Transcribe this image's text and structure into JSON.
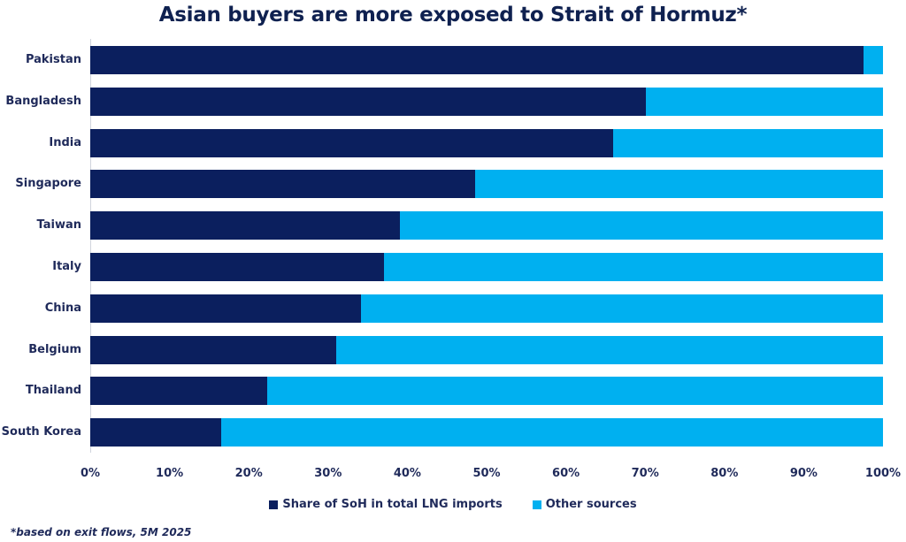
{
  "chart_data": {
    "type": "bar",
    "orientation": "horizontal",
    "stacked": true,
    "title": "Asian buyers are more exposed to Strait of Hormuz*",
    "xlabel": "",
    "ylabel": "",
    "xlim": [
      0,
      100
    ],
    "x_ticks": [
      "0%",
      "10%",
      "20%",
      "30%",
      "40%",
      "50%",
      "60%",
      "70%",
      "80%",
      "90%",
      "100%"
    ],
    "categories": [
      "Pakistan",
      "Bangladesh",
      "India",
      "Singapore",
      "Taiwan",
      "Italy",
      "China",
      "Belgium",
      "Thailand",
      "South Korea"
    ],
    "series": [
      {
        "name": "Share of SoH in total LNG imports",
        "color": "#0b1f5e",
        "values": [
          97.5,
          70.1,
          66.0,
          48.5,
          39.1,
          37.1,
          34.1,
          31.0,
          22.3,
          16.5
        ]
      },
      {
        "name": "Other sources",
        "color": "#00b0f0",
        "values": [
          2.5,
          29.9,
          34.0,
          51.5,
          60.9,
          62.9,
          65.9,
          69.0,
          77.7,
          83.5
        ]
      }
    ],
    "grid": false,
    "legend_position": "bottom",
    "footnote": "*based on exit flows, 5M 2025"
  },
  "title": "Asian buyers are more exposed to Strait of Hormuz*",
  "legend": {
    "items": [
      {
        "label": "Share of SoH in total LNG imports",
        "color": "#0b1f5e"
      },
      {
        "label": "Other sources",
        "color": "#00b0f0"
      }
    ]
  },
  "footnote": "*based on exit flows, 5M 2025"
}
